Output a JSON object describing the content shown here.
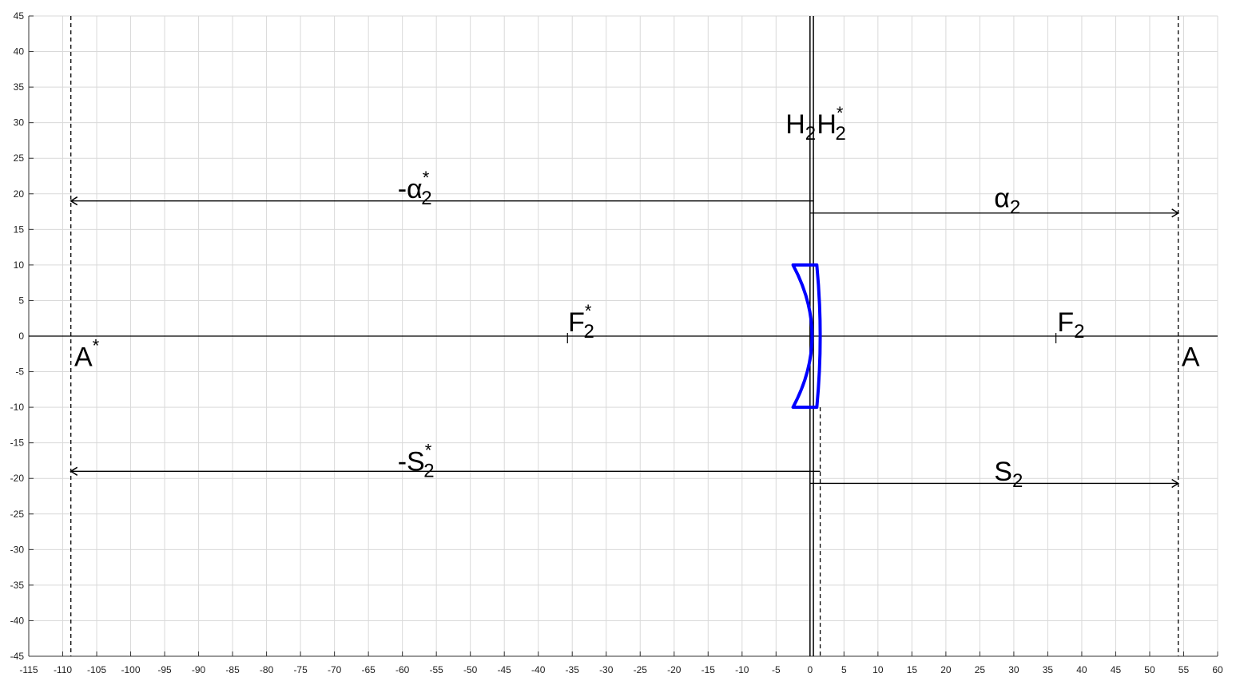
{
  "chart_data": {
    "type": "diagram",
    "xlim": [
      -115,
      60
    ],
    "ylim": [
      -45,
      45
    ],
    "x_ticks": [
      -115,
      -110,
      -105,
      -100,
      -95,
      -90,
      -85,
      -80,
      -75,
      -70,
      -65,
      -60,
      -55,
      -50,
      -45,
      -40,
      -35,
      -30,
      -25,
      -20,
      -15,
      -10,
      -5,
      0,
      5,
      10,
      15,
      20,
      25,
      30,
      35,
      40,
      45,
      50,
      55,
      60
    ],
    "y_ticks": [
      -45,
      -40,
      -35,
      -30,
      -25,
      -20,
      -15,
      -10,
      -5,
      0,
      5,
      10,
      15,
      20,
      25,
      30,
      35,
      40,
      45
    ],
    "grid": true,
    "lens": {
      "color": "#0000ff",
      "half_height": 10,
      "front_vertex_x": 0.3,
      "front_edge_x": -2.5,
      "back_vertex_x": 1.5,
      "back_edge_x": 1.0
    },
    "principal_planes": [
      {
        "name": "H2",
        "x": 0.0
      },
      {
        "name": "H2*",
        "x": 0.5
      }
    ],
    "dashed_lines": [
      {
        "x": -108.8
      },
      {
        "x": 54.2
      },
      {
        "x": 1.5,
        "y_from": -10,
        "y_to": -45
      }
    ],
    "focal_ticks": [
      {
        "name": "F2*",
        "x": -35.7
      },
      {
        "name": "F2",
        "x": 36.2
      }
    ],
    "arrows": [
      {
        "name": "-a2*",
        "x_from": 0.5,
        "x_to": -108.8,
        "y": 19
      },
      {
        "name": "a2",
        "x_from": 0.0,
        "x_to": 54.2,
        "y": 17.3
      },
      {
        "name": "-S2*",
        "x_from": 1.5,
        "x_to": -108.8,
        "y": -19
      },
      {
        "name": "S2",
        "x_from": 0.0,
        "x_to": 54.2,
        "y": -20.7
      }
    ],
    "labels": {
      "H2": {
        "main": "H",
        "sub": "2",
        "sup": ""
      },
      "H2star": {
        "main": "H",
        "sub": "2",
        "sup": "*"
      },
      "neg_a2star": {
        "main": "-α",
        "sub": "2",
        "sup": "*"
      },
      "a2": {
        "main": "α",
        "sub": "2",
        "sup": ""
      },
      "F2star": {
        "main": "F",
        "sub": "2",
        "sup": "*"
      },
      "F2": {
        "main": "F",
        "sub": "2",
        "sup": ""
      },
      "Astar": {
        "main": "A",
        "sub": "",
        "sup": "*"
      },
      "A": {
        "main": "A",
        "sub": "",
        "sup": ""
      },
      "neg_S2star": {
        "main": "-S",
        "sub": "2",
        "sup": "*"
      },
      "S2": {
        "main": "S",
        "sub": "2",
        "sup": ""
      }
    }
  }
}
